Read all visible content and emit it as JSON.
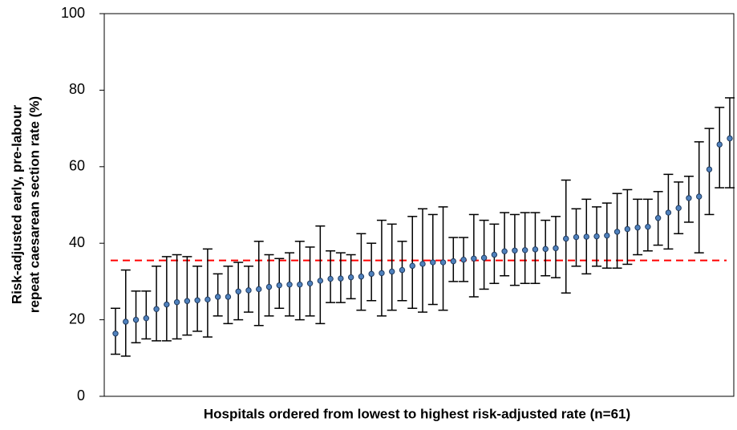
{
  "chart_data": {
    "type": "errorbar",
    "xlabel": "Hospitals ordered from lowest to highest risk-adjusted rate (n=61)",
    "ylabel": [
      "Risk-adjusted early, pre-labour",
      "repeat caesarean section rate (%)"
    ],
    "ylim": [
      0,
      100
    ],
    "yticks": [
      0,
      20,
      40,
      60,
      80,
      100
    ],
    "grid": false,
    "marker_color": "#4f81bd",
    "error_color": "#000000",
    "reference_line": {
      "value": 35.5,
      "color": "#ff0000"
    },
    "series": [
      {
        "values": [
          16.4,
          19.5,
          20,
          20.4,
          22.8,
          24,
          24.6,
          24.9,
          25.1,
          25.3,
          26,
          26,
          27.4,
          27.7,
          28,
          28.6,
          29,
          29.2,
          29.2,
          29.5,
          30.2,
          30.7,
          30.8,
          31.1,
          31.3,
          32,
          32.2,
          32.6,
          33,
          34.1,
          34.6,
          35,
          35,
          35.3,
          35.7,
          36,
          36.2,
          37,
          37.9,
          38.1,
          38.2,
          38.4,
          38.5,
          38.7,
          41.2,
          41.6,
          41.7,
          41.8,
          42,
          43,
          43.7,
          44.1,
          44.3,
          46.6,
          48,
          49.2,
          51.8,
          52.2,
          59.3,
          65.8,
          67.4
        ],
        "lower": [
          11,
          10.5,
          14,
          15,
          14.5,
          14.5,
          15,
          16,
          17,
          15.5,
          21,
          19,
          20,
          22,
          18.5,
          21,
          23,
          21,
          20,
          21,
          19,
          24.5,
          24.5,
          25.5,
          22.5,
          25,
          21,
          22.5,
          25,
          23,
          22,
          24,
          22.5,
          30,
          30,
          26,
          28,
          29.5,
          31.5,
          29,
          29.5,
          29.5,
          31.5,
          31,
          27,
          34,
          32,
          34,
          33.5,
          33.5,
          34.5,
          37,
          38,
          39.5,
          38.5,
          42.5,
          45.5,
          37.5,
          47.5,
          54.5,
          54.5
        ],
        "upper": [
          23,
          33,
          27.5,
          27.5,
          34,
          36.5,
          37,
          36.5,
          34,
          38.5,
          32,
          34,
          35,
          34,
          40.5,
          37,
          36,
          37.5,
          40.5,
          39,
          44.5,
          38,
          37.5,
          37,
          42.5,
          40,
          46,
          45,
          40.5,
          47,
          49,
          47.5,
          49.5,
          41.5,
          41.5,
          47.5,
          46,
          45,
          48,
          47.5,
          48,
          48,
          46,
          47,
          56.5,
          49,
          51.5,
          49.5,
          50.5,
          53,
          54,
          51.5,
          51.5,
          53.5,
          58,
          56,
          57.5,
          66.5,
          70,
          75.5,
          78
        ]
      }
    ]
  }
}
